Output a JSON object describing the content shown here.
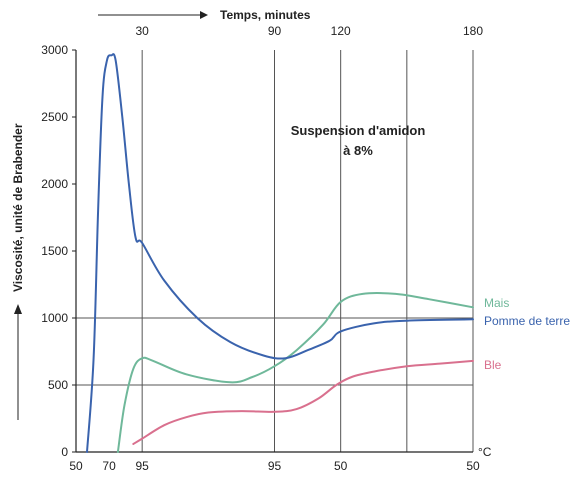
{
  "chart_data": {
    "type": "line",
    "title": "Suspension d'amidon",
    "subtitle": "à 8%",
    "ylabel": "Viscosité, unité de Brabender",
    "top_axis_label": "Temps, minutes",
    "top_ticks": [
      {
        "label": "30",
        "t": 30
      },
      {
        "label": "90",
        "t": 90
      },
      {
        "label": "120",
        "t": 120
      },
      {
        "label": "180",
        "t": 180
      }
    ],
    "bottom_ticks": [
      {
        "label": "50",
        "t": 0
      },
      {
        "label": "70",
        "t": 15
      },
      {
        "label": "95",
        "t": 30
      },
      {
        "label": "95",
        "t": 90
      },
      {
        "label": "50",
        "t": 120
      },
      {
        "label": "50",
        "t": 180
      }
    ],
    "bottom_unit": "°C",
    "y_ticks": [
      "0",
      "500",
      "1000",
      "1500",
      "2000",
      "2500",
      "3000"
    ],
    "xlim": [
      0,
      180
    ],
    "ylim": [
      0,
      3000
    ],
    "grid": {
      "horizontal": [
        500,
        1000
      ],
      "vertical": [
        30,
        90,
        120,
        150,
        180
      ]
    },
    "series": [
      {
        "name": "Mais",
        "color": "#6fb89a",
        "points": [
          [
            19,
            0
          ],
          [
            22,
            350
          ],
          [
            26,
            620
          ],
          [
            30,
            700
          ],
          [
            35,
            680
          ],
          [
            50,
            580
          ],
          [
            70,
            520
          ],
          [
            80,
            560
          ],
          [
            90,
            640
          ],
          [
            100,
            760
          ],
          [
            112,
            950
          ],
          [
            120,
            1120
          ],
          [
            130,
            1180
          ],
          [
            145,
            1180
          ],
          [
            160,
            1140
          ],
          [
            180,
            1080
          ]
        ]
      },
      {
        "name": "Pomme de terre",
        "color": "#3a63ad",
        "points": [
          [
            5,
            0
          ],
          [
            8,
            700
          ],
          [
            10,
            1800
          ],
          [
            12,
            2650
          ],
          [
            14,
            2920
          ],
          [
            16,
            2960
          ],
          [
            18,
            2920
          ],
          [
            21,
            2500
          ],
          [
            24,
            2000
          ],
          [
            27,
            1600
          ],
          [
            30,
            1560
          ],
          [
            40,
            1280
          ],
          [
            55,
            1000
          ],
          [
            70,
            820
          ],
          [
            85,
            720
          ],
          [
            95,
            700
          ],
          [
            105,
            760
          ],
          [
            115,
            830
          ],
          [
            120,
            900
          ],
          [
            135,
            960
          ],
          [
            150,
            980
          ],
          [
            180,
            990
          ]
        ]
      },
      {
        "name": "Ble",
        "color": "#d9708e",
        "points": [
          [
            26,
            60
          ],
          [
            30,
            100
          ],
          [
            40,
            200
          ],
          [
            50,
            260
          ],
          [
            60,
            295
          ],
          [
            75,
            305
          ],
          [
            90,
            300
          ],
          [
            100,
            320
          ],
          [
            110,
            400
          ],
          [
            118,
            500
          ],
          [
            125,
            560
          ],
          [
            135,
            600
          ],
          [
            150,
            640
          ],
          [
            165,
            660
          ],
          [
            180,
            680
          ]
        ]
      }
    ]
  }
}
